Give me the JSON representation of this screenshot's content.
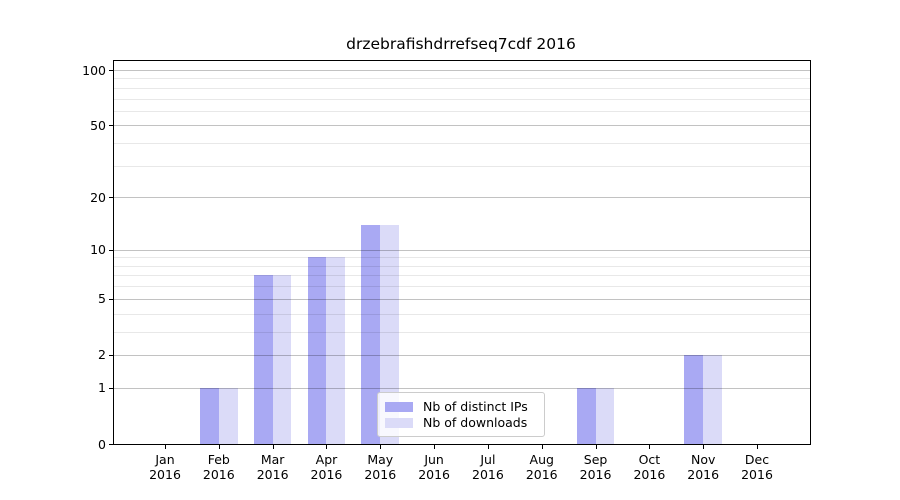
{
  "figure": {
    "background": "#ffffff",
    "axis_color": "#000000"
  },
  "chart_data": {
    "type": "bar",
    "title": "drzebrafishdrrefseq7cdf 2016",
    "categories": [
      "Jan",
      "Feb",
      "Mar",
      "Apr",
      "May",
      "Jun",
      "Jul",
      "Aug",
      "Sep",
      "Oct",
      "Nov",
      "Dec"
    ],
    "x_tick_second_line": "2016",
    "series": [
      {
        "name": "Nb of distinct IPs",
        "color": "#a9a9f3",
        "values": [
          0,
          1,
          7,
          9,
          14,
          0,
          0,
          0,
          1,
          0,
          2,
          0
        ]
      },
      {
        "name": "Nb of downloads",
        "color": "#dbdbf8",
        "values": [
          0,
          1,
          7,
          9,
          14,
          0,
          0,
          0,
          1,
          0,
          2,
          0
        ]
      }
    ],
    "y_axis": {
      "scale": "log10(value+1)",
      "range": [
        0,
        100
      ],
      "tick_labels": [
        "0",
        "1",
        "2",
        "5",
        "10",
        "20",
        "50",
        "100"
      ],
      "major_gridlines": [
        1,
        2,
        5,
        10,
        20,
        50,
        100
      ],
      "minor_gridlines": [
        3,
        4,
        6,
        7,
        8,
        9,
        30,
        40,
        60,
        70,
        80,
        90
      ]
    },
    "grid": true,
    "legend_position": "lower center"
  }
}
